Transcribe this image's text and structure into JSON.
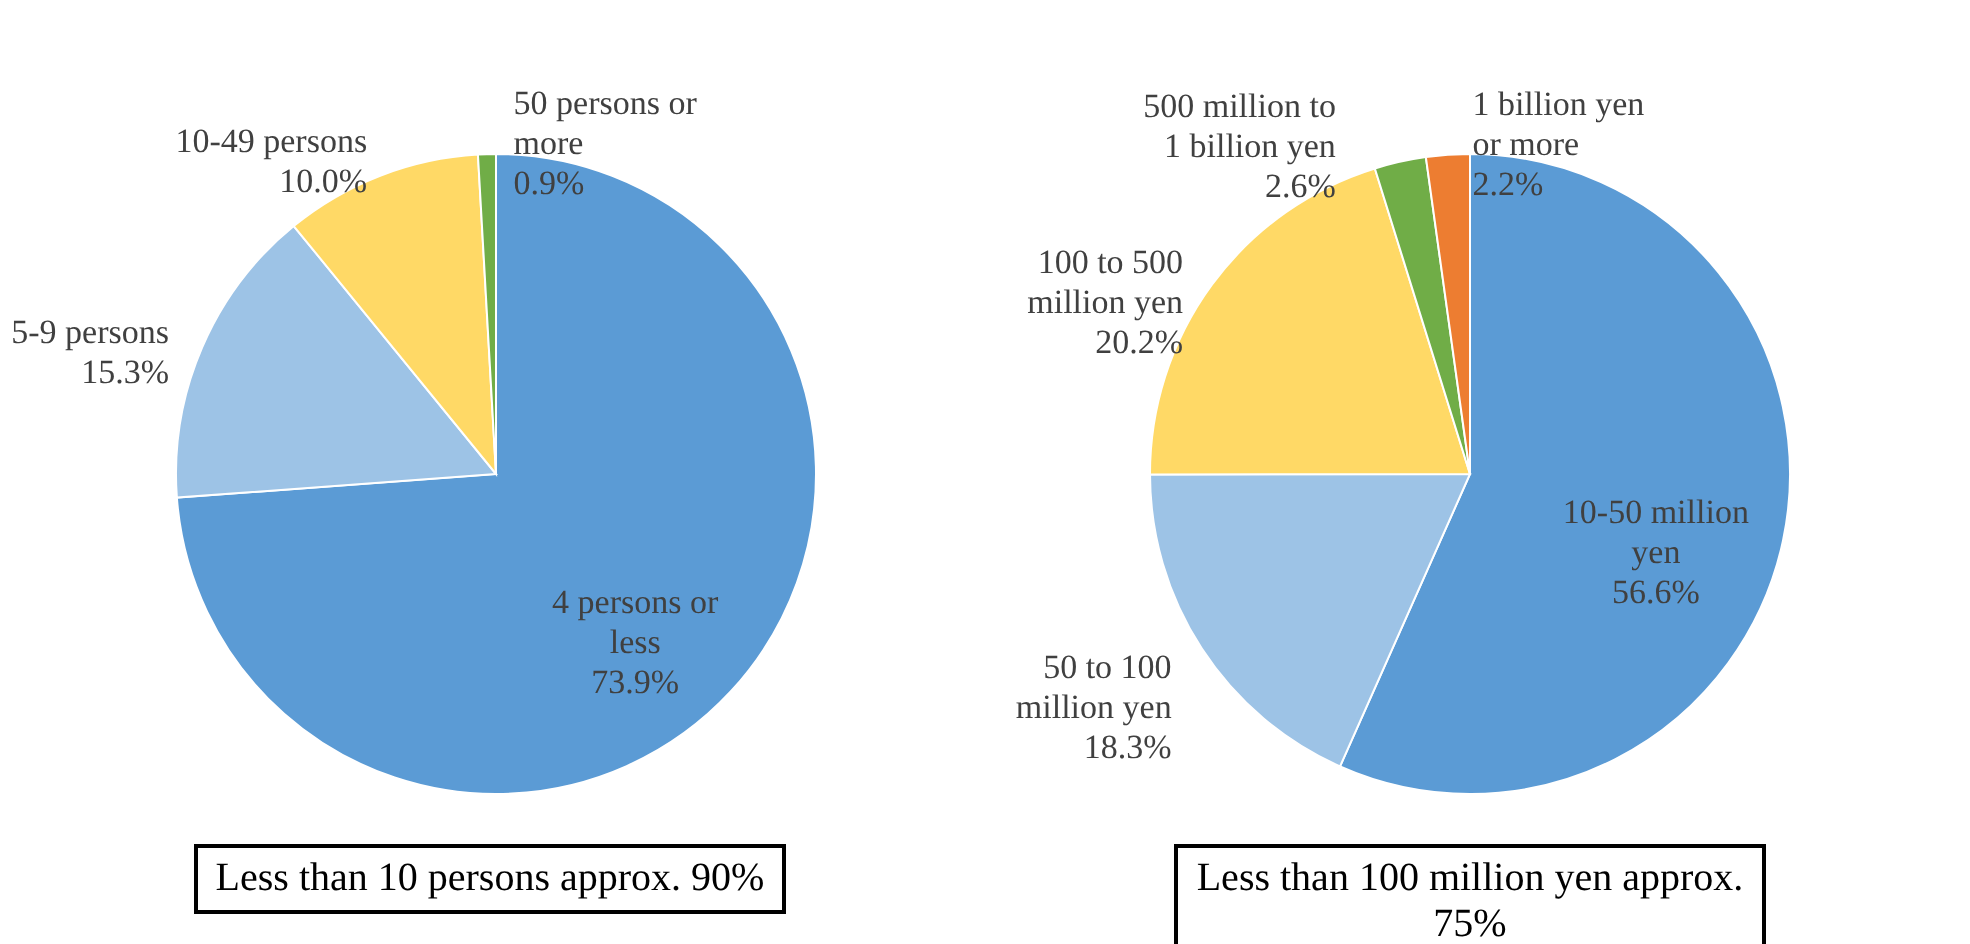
{
  "chart_data": [
    {
      "type": "pie",
      "categories": [
        "4 persons or less",
        "5-9 persons",
        "10-49 persons",
        "50 persons or more"
      ],
      "values": [
        73.9,
        15.3,
        10.0,
        0.9
      ],
      "colors": [
        "#5b9bd5",
        "#9dc3e6",
        "#ffd966",
        "#70ad47"
      ],
      "value_labels": [
        "73.9%",
        "15.3%",
        "10.0%",
        "0.9%"
      ],
      "annotations": [
        "Less than 10 persons approx. 90%"
      ]
    },
    {
      "type": "pie",
      "categories": [
        "10-50 million yen",
        "50 to 100 million yen",
        "100 to 500 million yen",
        "500 million to 1 billion yen",
        "1 billion yen or more"
      ],
      "values": [
        56.6,
        18.3,
        20.2,
        2.6,
        2.2
      ],
      "colors": [
        "#5b9bd5",
        "#9dc3e6",
        "#ffd966",
        "#70ad47",
        "#ed7d31"
      ],
      "value_labels": [
        "56.6%",
        "18.3%",
        "20.2%",
        "2.6%",
        "2.2%"
      ],
      "annotations": [
        "Less than 100 million yen approx. 75%"
      ]
    }
  ]
}
